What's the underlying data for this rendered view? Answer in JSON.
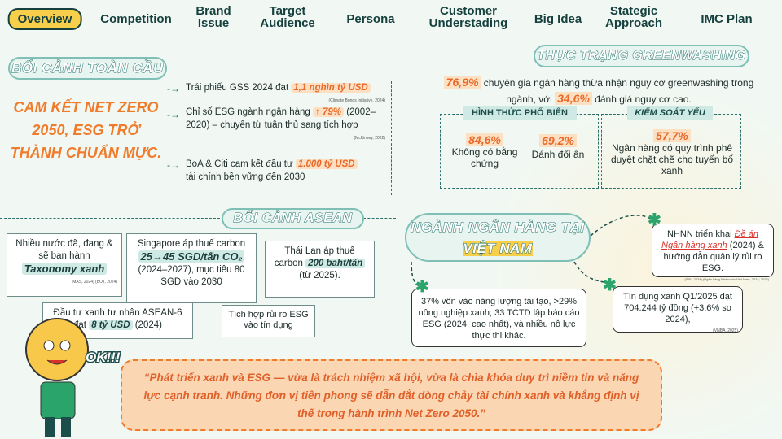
{
  "nav": [
    [
      "Overview"
    ],
    [
      "Competition"
    ],
    [
      "Brand",
      "Issue"
    ],
    [
      "Target",
      "Audience"
    ],
    [
      "Persona"
    ],
    [
      "Customer",
      "Understading"
    ],
    [
      "Big Idea"
    ],
    [
      "Stategic",
      "Approach"
    ],
    [
      "IMC Plan"
    ]
  ],
  "global": {
    "title": "BỐI CẢNH TOÀN CẦU",
    "headline": "CAM KẾT NET ZERO 2050, ESG TRỞ THÀNH CHUẨN MỰC.",
    "bullets": [
      {
        "before": "Trái phiếu GSS 2024 đạt",
        "highlight": "1,1 nghìn tỷ USD",
        "after": "",
        "source": "(Climate Bonds Initiative, 2024)"
      },
      {
        "before": "Chỉ số ESG ngành ngân hàng",
        "highlight": "↑ 79%",
        "after": "(2002–2020) – chuyển từ tuân thủ sang tích hợp",
        "source": "(McKinsey, 2022)"
      },
      {
        "before": "BoA & Citi cam kết đầu tư",
        "highlight": "1.000 tỷ USD",
        "after": "tài chính bền vững đến 2030"
      }
    ]
  },
  "asean": {
    "title": "BỐI CẢNH ASEAN",
    "boxes": [
      {
        "before": "Nhiều nước đã, đang & sẽ ban hành",
        "highlight": "Taxonomy xanh",
        "source": "(MAS, 2024) (BOT, 2024)"
      },
      {
        "before": "Singapore áp thuế carbon",
        "highlight": "25→45 SGD/tấn CO₂",
        "after": "(2024–2027), mục tiêu 80 SGD vào 2030"
      },
      {
        "before": "Thái Lan áp thuế carbon",
        "highlight": "200 baht/tấn",
        "after": "(từ 2025)."
      },
      {
        "before": "Đầu tư xanh tư nhân ASEAN-6 đạt",
        "highlight": "8 tỷ USD",
        "after": "(2024)"
      },
      {
        "before": "Tích hợp rủi ro ESG vào tín dụng"
      }
    ]
  },
  "greenwashing": {
    "title": "THỰC TRẠNG GREENWASHING",
    "intro": [
      "76,9%",
      "chuyên gia ngân hàng thừa nhận nguy cơ greenwashing trong ngành, với",
      "34,6%",
      "đánh giá nguy cơ cao."
    ],
    "columns": [
      {
        "heading": "HÌNH THỨC PHỔ BIẾN",
        "stats": [
          {
            "value": "84,6%",
            "label": "Không có bằng chứng"
          },
          {
            "value": "69,2%",
            "label": "Đánh đổi ẩn"
          }
        ]
      },
      {
        "heading": "KIỂM SOÁT YẾU",
        "stats": [
          {
            "value": "57,7%",
            "label": "Ngân hàng có quy trình phê duyệt chặt chẽ cho tuyến bố xanh"
          }
        ]
      }
    ]
  },
  "vietnam": {
    "title": [
      "NGÀNH  NGÂN HÀNG TẠI",
      "VIỆT NAM"
    ],
    "cards": [
      {
        "before": "NHNN triển khai",
        "highlight": "Đề án Ngân hàng xanh",
        "after": "(2024) & hướng dẫn quản lý rủi ro ESG.",
        "source": "(SBV, 2024) (Ngân hàng Nhà nước Việt Nam, 2024; 2025)"
      },
      {
        "before": "37% vốn vào năng lượng tái tạo, >29% nông nghiệp xanh; 33 TCTD lập báo cáo ESG (2024, cao nhất), và nhiều nỗ lực thực thi khác."
      },
      {
        "before": "Tín dụng xanh Q1/2025 đạt 704.244 tỷ đồng (+3,6% so 2024),",
        "source": "(VNBA, 2025)"
      }
    ]
  },
  "mascot": "OK!!!",
  "quote": "“Phát triển xanh và ESG — vừa là trách nhiệm xã hội, vừa là chìa khóa duy trì niềm tin và năng lực cạnh tranh. Những đơn vị tiên phong sẽ dẫn dắt dòng chảy tài chính xanh và khẳng định vị thế trong hành trình Net Zero 2050.”"
}
